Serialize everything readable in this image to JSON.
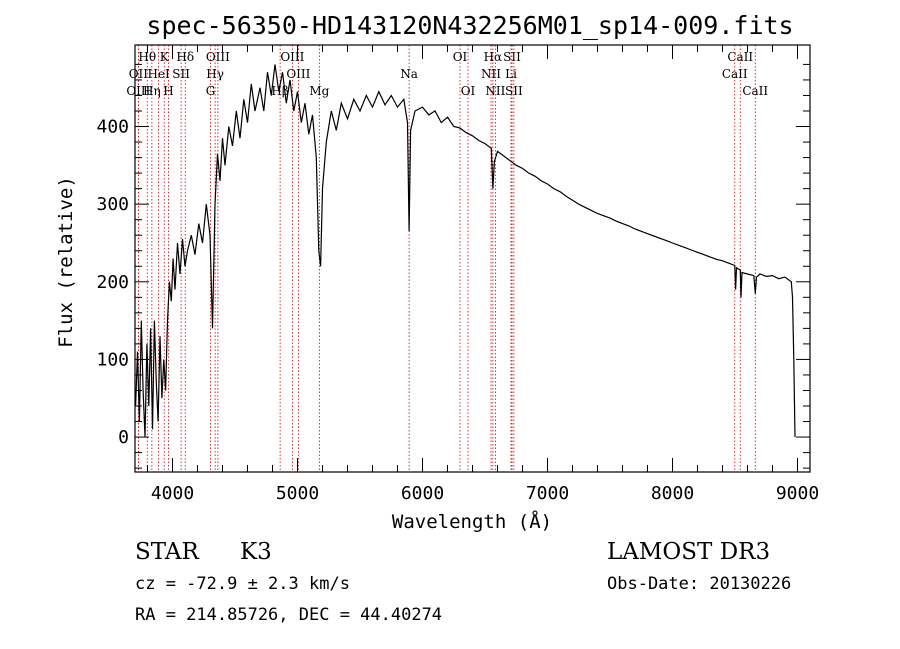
{
  "chart_data": {
    "type": "line",
    "title": "spec-56350-HD143120N432256M01_sp14-009.fits",
    "xlabel": "Wavelength (Å)",
    "ylabel": "Flux (relative)",
    "xlim": [
      3700,
      9100
    ],
    "ylim": [
      -45,
      505
    ],
    "x_ticks": [
      4000,
      5000,
      6000,
      7000,
      8000,
      9000
    ],
    "x_tick_labels": [
      "4000",
      "5000",
      "6000",
      "7000",
      "8000",
      "9000"
    ],
    "y_ticks": [
      0,
      100,
      200,
      300,
      400
    ],
    "y_tick_labels": [
      "0",
      "100",
      "200",
      "300",
      "400"
    ],
    "series": [
      {
        "name": "flux",
        "points": [
          [
            3705,
            40
          ],
          [
            3720,
            110
          ],
          [
            3735,
            20
          ],
          [
            3750,
            150
          ],
          [
            3765,
            60
          ],
          [
            3780,
            0
          ],
          [
            3795,
            120
          ],
          [
            3810,
            40
          ],
          [
            3825,
            140
          ],
          [
            3840,
            10
          ],
          [
            3855,
            150
          ],
          [
            3870,
            70
          ],
          [
            3885,
            20
          ],
          [
            3900,
            130
          ],
          [
            3915,
            50
          ],
          [
            3930,
            100
          ],
          [
            3945,
            60
          ],
          [
            3960,
            150
          ],
          [
            3975,
            200
          ],
          [
            3990,
            175
          ],
          [
            4005,
            230
          ],
          [
            4020,
            190
          ],
          [
            4040,
            250
          ],
          [
            4060,
            210
          ],
          [
            4080,
            255
          ],
          [
            4100,
            220
          ],
          [
            4120,
            240
          ],
          [
            4150,
            260
          ],
          [
            4180,
            235
          ],
          [
            4210,
            275
          ],
          [
            4240,
            250
          ],
          [
            4270,
            300
          ],
          [
            4300,
            260
          ],
          [
            4320,
            140
          ],
          [
            4340,
            300
          ],
          [
            4360,
            365
          ],
          [
            4380,
            330
          ],
          [
            4400,
            385
          ],
          [
            4420,
            350
          ],
          [
            4450,
            400
          ],
          [
            4480,
            375
          ],
          [
            4510,
            420
          ],
          [
            4540,
            385
          ],
          [
            4570,
            435
          ],
          [
            4600,
            405
          ],
          [
            4630,
            455
          ],
          [
            4660,
            420
          ],
          [
            4700,
            450
          ],
          [
            4730,
            420
          ],
          [
            4760,
            470
          ],
          [
            4790,
            440
          ],
          [
            4820,
            480
          ],
          [
            4850,
            445
          ],
          [
            4880,
            470
          ],
          [
            4910,
            430
          ],
          [
            4940,
            460
          ],
          [
            4970,
            420
          ],
          [
            5000,
            445
          ],
          [
            5030,
            405
          ],
          [
            5060,
            430
          ],
          [
            5090,
            390
          ],
          [
            5120,
            415
          ],
          [
            5150,
            360
          ],
          [
            5170,
            240
          ],
          [
            5185,
            220
          ],
          [
            5200,
            320
          ],
          [
            5230,
            380
          ],
          [
            5270,
            420
          ],
          [
            5310,
            395
          ],
          [
            5350,
            430
          ],
          [
            5400,
            410
          ],
          [
            5450,
            435
          ],
          [
            5500,
            420
          ],
          [
            5550,
            440
          ],
          [
            5600,
            425
          ],
          [
            5650,
            445
          ],
          [
            5700,
            428
          ],
          [
            5750,
            440
          ],
          [
            5800,
            425
          ],
          [
            5850,
            435
          ],
          [
            5880,
            405
          ],
          [
            5893,
            265
          ],
          [
            5905,
            395
          ],
          [
            5940,
            420
          ],
          [
            6000,
            425
          ],
          [
            6050,
            415
          ],
          [
            6100,
            420
          ],
          [
            6150,
            405
          ],
          [
            6200,
            412
          ],
          [
            6250,
            400
          ],
          [
            6300,
            398
          ],
          [
            6350,
            392
          ],
          [
            6400,
            388
          ],
          [
            6450,
            382
          ],
          [
            6500,
            378
          ],
          [
            6550,
            372
          ],
          [
            6563,
            320
          ],
          [
            6575,
            355
          ],
          [
            6600,
            368
          ],
          [
            6650,
            362
          ],
          [
            6700,
            356
          ],
          [
            6750,
            350
          ],
          [
            6800,
            346
          ],
          [
            6850,
            340
          ],
          [
            6900,
            336
          ],
          [
            6950,
            330
          ],
          [
            7000,
            326
          ],
          [
            7050,
            320
          ],
          [
            7100,
            316
          ],
          [
            7150,
            310
          ],
          [
            7200,
            305
          ],
          [
            7250,
            300
          ],
          [
            7300,
            296
          ],
          [
            7350,
            292
          ],
          [
            7400,
            288
          ],
          [
            7450,
            285
          ],
          [
            7500,
            282
          ],
          [
            7550,
            278
          ],
          [
            7600,
            275
          ],
          [
            7650,
            272
          ],
          [
            7700,
            268
          ],
          [
            7750,
            265
          ],
          [
            7800,
            262
          ],
          [
            7850,
            259
          ],
          [
            7900,
            256
          ],
          [
            7950,
            253
          ],
          [
            8000,
            250
          ],
          [
            8050,
            247
          ],
          [
            8100,
            244
          ],
          [
            8150,
            241
          ],
          [
            8200,
            238
          ],
          [
            8250,
            235
          ],
          [
            8300,
            232
          ],
          [
            8350,
            229
          ],
          [
            8400,
            227
          ],
          [
            8450,
            224
          ],
          [
            8498,
            221
          ],
          [
            8505,
            190
          ],
          [
            8512,
            218
          ],
          [
            8542,
            215
          ],
          [
            8548,
            180
          ],
          [
            8556,
            212
          ],
          [
            8600,
            210
          ],
          [
            8650,
            208
          ],
          [
            8662,
            185
          ],
          [
            8672,
            206
          ],
          [
            8700,
            210
          ],
          [
            8750,
            207
          ],
          [
            8800,
            208
          ],
          [
            8850,
            204
          ],
          [
            8900,
            206
          ],
          [
            8950,
            200
          ],
          [
            8960,
            180
          ],
          [
            8970,
            100
          ],
          [
            8980,
            0
          ]
        ]
      }
    ],
    "line_markers": [
      {
        "label": "Hθ",
        "wavelength": 3798,
        "row": 1
      },
      {
        "label": "OII",
        "wavelength": 3727,
        "row": 2
      },
      {
        "label": "OIII",
        "wavelength": 3727,
        "row": 3
      },
      {
        "label": "K",
        "wavelength": 3934,
        "row": 1
      },
      {
        "label": "HeI",
        "wavelength": 3889,
        "row": 2
      },
      {
        "label": "Hη",
        "wavelength": 3835,
        "row": 3
      },
      {
        "label": "SII",
        "wavelength": 4069,
        "row": 2
      },
      {
        "label": "H",
        "wavelength": 3968,
        "row": 3
      },
      {
        "label": "Hδ",
        "wavelength": 4102,
        "row": 1
      },
      {
        "label": "OIII",
        "wavelength": 4363,
        "row": 1
      },
      {
        "label": "Hγ",
        "wavelength": 4341,
        "row": 2
      },
      {
        "label": "G",
        "wavelength": 4304,
        "row": 3
      },
      {
        "label": "OIII",
        "wavelength": 4959,
        "row": 1
      },
      {
        "label": "OIII",
        "wavelength": 5007,
        "row": 2
      },
      {
        "label": "Hβ",
        "wavelength": 4861,
        "row": 3
      },
      {
        "label": "Mg",
        "wavelength": 5175,
        "row": 3
      },
      {
        "label": "Na",
        "wavelength": 5893,
        "row": 2
      },
      {
        "label": "OI",
        "wavelength": 6300,
        "row": 1
      },
      {
        "label": "OI",
        "wavelength": 6364,
        "row": 3
      },
      {
        "label": "Hα",
        "wavelength": 6563,
        "row": 1
      },
      {
        "label": "SII",
        "wavelength": 6716,
        "row": 1
      },
      {
        "label": "NII",
        "wavelength": 6548,
        "row": 2
      },
      {
        "label": "Li",
        "wavelength": 6708,
        "row": 2
      },
      {
        "label": "NII",
        "wavelength": 6583,
        "row": 3
      },
      {
        "label": "SII",
        "wavelength": 6731,
        "row": 3
      },
      {
        "label": "CaII",
        "wavelength": 8542,
        "row": 1
      },
      {
        "label": "CaII",
        "wavelength": 8498,
        "row": 2
      },
      {
        "label": "CaII",
        "wavelength": 8662,
        "row": 3
      }
    ]
  },
  "info": {
    "object_class": "STAR",
    "subclass": "K3",
    "survey": "LAMOST DR3",
    "redshift": "cz = -72.9 ± 2.3 km/s",
    "obs_date": "Obs-Date: 20130226",
    "coords": "RA = 214.85726, DEC =  44.40274"
  },
  "colors": {
    "line": "#000000",
    "marker": "#cc0000",
    "axis": "#000000",
    "background": "#ffffff"
  }
}
